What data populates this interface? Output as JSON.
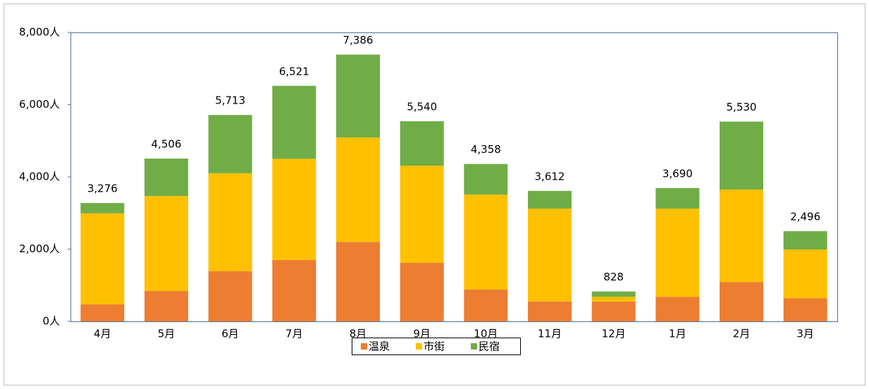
{
  "chart_data": {
    "type": "stacked_bar",
    "categories": [
      "4月",
      "5月",
      "6月",
      "7月",
      "8月",
      "9月",
      "10月",
      "11月",
      "12月",
      "1月",
      "2月",
      "3月"
    ],
    "series": [
      {
        "name": "温泉",
        "color": "#ed7d31",
        "values": [
          470,
          840,
          1390,
          1700,
          2200,
          1620,
          880,
          550,
          550,
          680,
          1090,
          640
        ]
      },
      {
        "name": "市街",
        "color": "#ffc000",
        "values": [
          2520,
          2630,
          2710,
          2800,
          2890,
          2690,
          2630,
          2570,
          130,
          2440,
          2560,
          1350
        ]
      },
      {
        "name": "民宿",
        "color": "#70ad47",
        "values": [
          286,
          1036,
          1613,
          2021,
          2296,
          1230,
          848,
          492,
          148,
          570,
          1880,
          506
        ]
      }
    ],
    "totals": {
      "values": [
        3276,
        4506,
        5713,
        6521,
        7386,
        5540,
        4358,
        3612,
        828,
        3690,
        5530,
        2496
      ],
      "value_labels": [
        "3,276",
        "4,506",
        "5,713",
        "6,521",
        "7,386",
        "5,540",
        "4,358",
        "3,612",
        "828",
        "3,690",
        "5,530",
        "2,496"
      ]
    },
    "ylim": [
      0,
      8000
    ],
    "yticks": [
      {
        "value": 0,
        "label": "0人"
      },
      {
        "value": 2000,
        "label": "2,000人"
      },
      {
        "value": 4000,
        "label": "4,000人"
      },
      {
        "value": 6000,
        "label": "6,000人"
      },
      {
        "value": 8000,
        "label": "8,000人"
      }
    ],
    "legend": "bottom"
  }
}
